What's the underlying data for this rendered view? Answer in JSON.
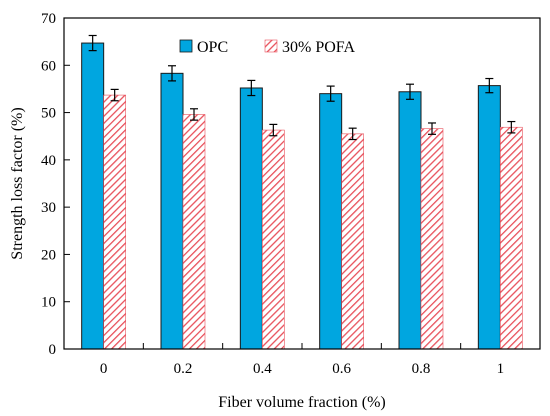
{
  "chart_data": {
    "type": "bar",
    "xlabel": "Fiber volume fraction (%)",
    "ylabel": "Strength loss factor (%)",
    "ylim": [
      0,
      70
    ],
    "yticks": [
      0,
      10,
      20,
      30,
      40,
      50,
      60,
      70
    ],
    "categories": [
      "0",
      "0.2",
      "0.4",
      "0.6",
      "0.8",
      "1"
    ],
    "legend_position": "top-center",
    "grid": false,
    "series": [
      {
        "name": "OPC",
        "color": "#00a6e0",
        "pattern": "solid",
        "values": [
          64.7,
          58.3,
          55.2,
          54.0,
          54.4,
          55.7
        ],
        "errors": [
          1.6,
          1.6,
          1.6,
          1.6,
          1.6,
          1.5
        ]
      },
      {
        "name": "30% POFA",
        "color": "#e8505b",
        "pattern": "diagonal-hatch",
        "values": [
          53.7,
          49.6,
          46.3,
          45.5,
          46.6,
          46.9
        ],
        "errors": [
          1.2,
          1.2,
          1.2,
          1.2,
          1.2,
          1.2
        ]
      }
    ]
  }
}
